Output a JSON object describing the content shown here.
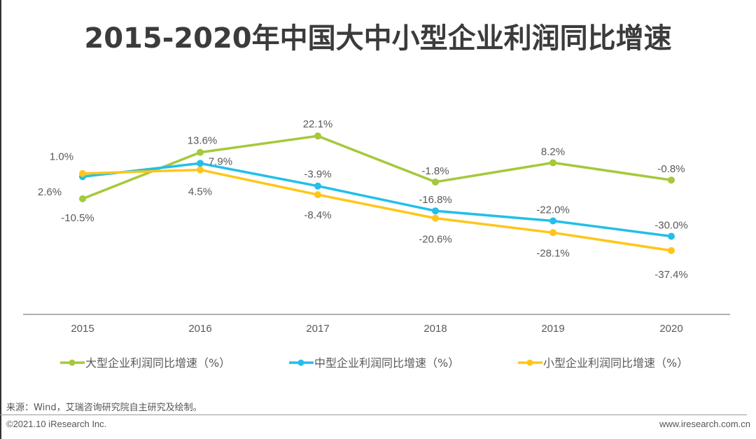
{
  "title": "2015-2020年中国大中小型企业利润同比增速",
  "chart_data": {
    "type": "line",
    "title": "2015-2020年中国大中小型企业利润同比增速",
    "xlabel": "",
    "ylabel": "",
    "x": [
      "2015",
      "2016",
      "2017",
      "2018",
      "2019",
      "2020"
    ],
    "series": [
      {
        "name": "大型企业利润同比增速（%）",
        "color": "#a4c93a",
        "values": [
          -10.5,
          13.6,
          22.1,
          -1.8,
          8.2,
          -0.8
        ],
        "labels": [
          "-10.5%",
          "13.6%",
          "22.1%",
          "-1.8%",
          "8.2%",
          "-0.8%"
        ]
      },
      {
        "name": "中型企业利润同比增速（%）",
        "color": "#22bfe9",
        "values": [
          1.0,
          7.9,
          -3.9,
          -16.8,
          -22.0,
          -30.0
        ],
        "labels": [
          "1.0%",
          "7.9%",
          "-3.9%",
          "-16.8%",
          "-22.0%",
          "-30.0%"
        ]
      },
      {
        "name": "小型企业利润同比增速（%）",
        "color": "#ffc619",
        "values": [
          2.6,
          4.5,
          -8.4,
          -20.6,
          -28.1,
          -37.4
        ],
        "labels": [
          "2.6%",
          "4.5%",
          "-8.4%",
          "-20.6%",
          "-28.1%",
          "-37.4%"
        ]
      }
    ],
    "ylim": [
      -70,
      45
    ],
    "grid": false,
    "y_axis_visible": false,
    "legend_position": "bottom"
  },
  "footer": {
    "source": "来源：Wind，艾瑞咨询研究院自主研究及绘制。",
    "copyright": "©2021.10 iResearch Inc.",
    "website": "www.iresearch.com.cn"
  }
}
